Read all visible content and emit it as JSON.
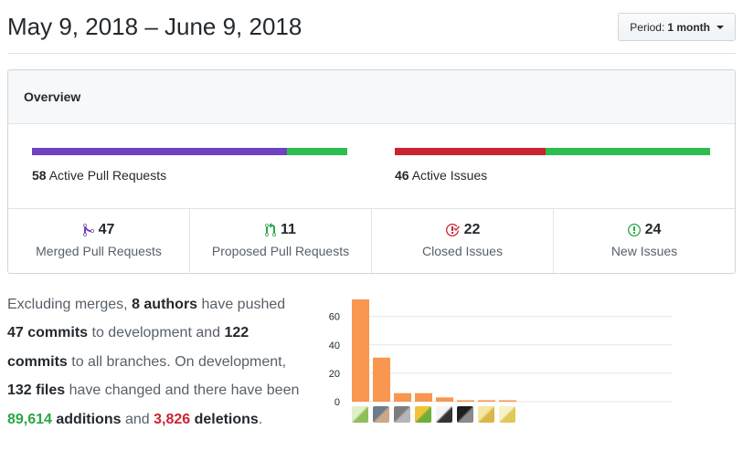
{
  "header": {
    "date_range": "May 9, 2018 – June 9, 2018",
    "period_label": "Period:",
    "period_value": "1 month"
  },
  "overview": {
    "title": "Overview",
    "pull_requests": {
      "count": "58",
      "label": "Active Pull Requests",
      "merged_fraction": 0.81,
      "colors": [
        "#6f42c1",
        "#2cbe4e"
      ]
    },
    "issues": {
      "count": "46",
      "label": "Active Issues",
      "closed_fraction": 0.478,
      "colors": [
        "#cb2431",
        "#2cbe4e"
      ]
    },
    "stats": [
      {
        "count": "47",
        "label": "Merged Pull Requests",
        "icon": "git-merge-icon",
        "color": "#6f42c1"
      },
      {
        "count": "11",
        "label": "Proposed Pull Requests",
        "icon": "git-pull-request-icon",
        "color": "#28a745"
      },
      {
        "count": "22",
        "label": "Closed Issues",
        "icon": "issue-closed-icon",
        "color": "#cb2431"
      },
      {
        "count": "24",
        "label": "New Issues",
        "icon": "issue-opened-icon",
        "color": "#28a745"
      }
    ]
  },
  "summary": {
    "t1": "Excluding merges, ",
    "authors": "8 authors",
    "t2": " have pushed ",
    "commits_dev": "47 commits",
    "t3": " to development and ",
    "commits_all": "122 commits",
    "t4": " to all branches. On development, ",
    "files": "132 files",
    "t5": " have changed and there have been ",
    "additions": "89,614",
    "additions_word": " additions",
    "t6": " and ",
    "deletions": "3,826",
    "deletions_word": " deletions",
    "t7": "."
  },
  "chart_data": {
    "type": "bar",
    "title": "",
    "xlabel": "",
    "ylabel": "",
    "ylim": [
      0,
      72
    ],
    "yticks": [
      0,
      20,
      40,
      60
    ],
    "values": [
      72,
      31,
      6,
      6,
      3,
      1,
      1,
      1
    ],
    "bar_color": "#f9964f",
    "grid": true,
    "avatars": [
      "avatar-1",
      "avatar-2",
      "avatar-3",
      "avatar-4",
      "avatar-5",
      "avatar-6",
      "avatar-7",
      "avatar-8"
    ]
  }
}
